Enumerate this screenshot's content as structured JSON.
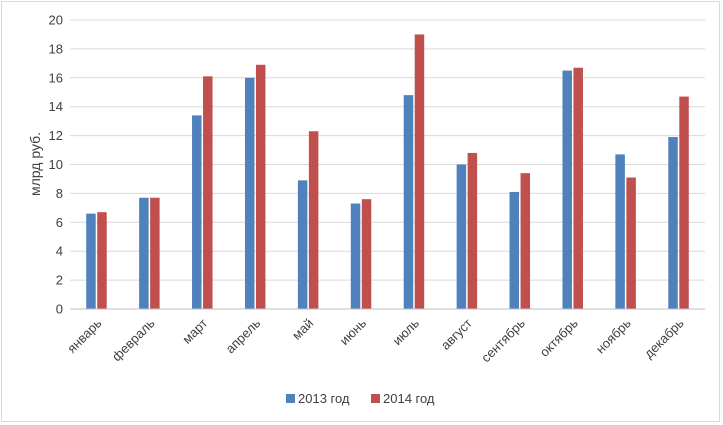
{
  "chart_data": {
    "type": "bar",
    "title": "",
    "xlabel": "",
    "ylabel": "млрд руб.",
    "ylim": [
      0,
      20
    ],
    "yticks": [
      0,
      2,
      4,
      6,
      8,
      10,
      12,
      14,
      16,
      18,
      20
    ],
    "grid": true,
    "legend_position": "bottom",
    "categories": [
      "январь",
      "февраль",
      "март",
      "апрель",
      "май",
      "июнь",
      "июль",
      "август",
      "сентябрь",
      "октябрь",
      "ноябрь",
      "декабрь"
    ],
    "series": [
      {
        "name": "2013 год",
        "color": "#4f81bd",
        "values": [
          6.6,
          7.7,
          13.4,
          16.0,
          8.9,
          7.3,
          14.8,
          10.0,
          8.1,
          16.5,
          10.7,
          11.9
        ]
      },
      {
        "name": "2014 год",
        "color": "#c0504d",
        "values": [
          6.7,
          7.7,
          16.1,
          16.9,
          12.3,
          7.6,
          19.0,
          10.8,
          9.4,
          16.7,
          9.1,
          14.7
        ]
      }
    ]
  }
}
